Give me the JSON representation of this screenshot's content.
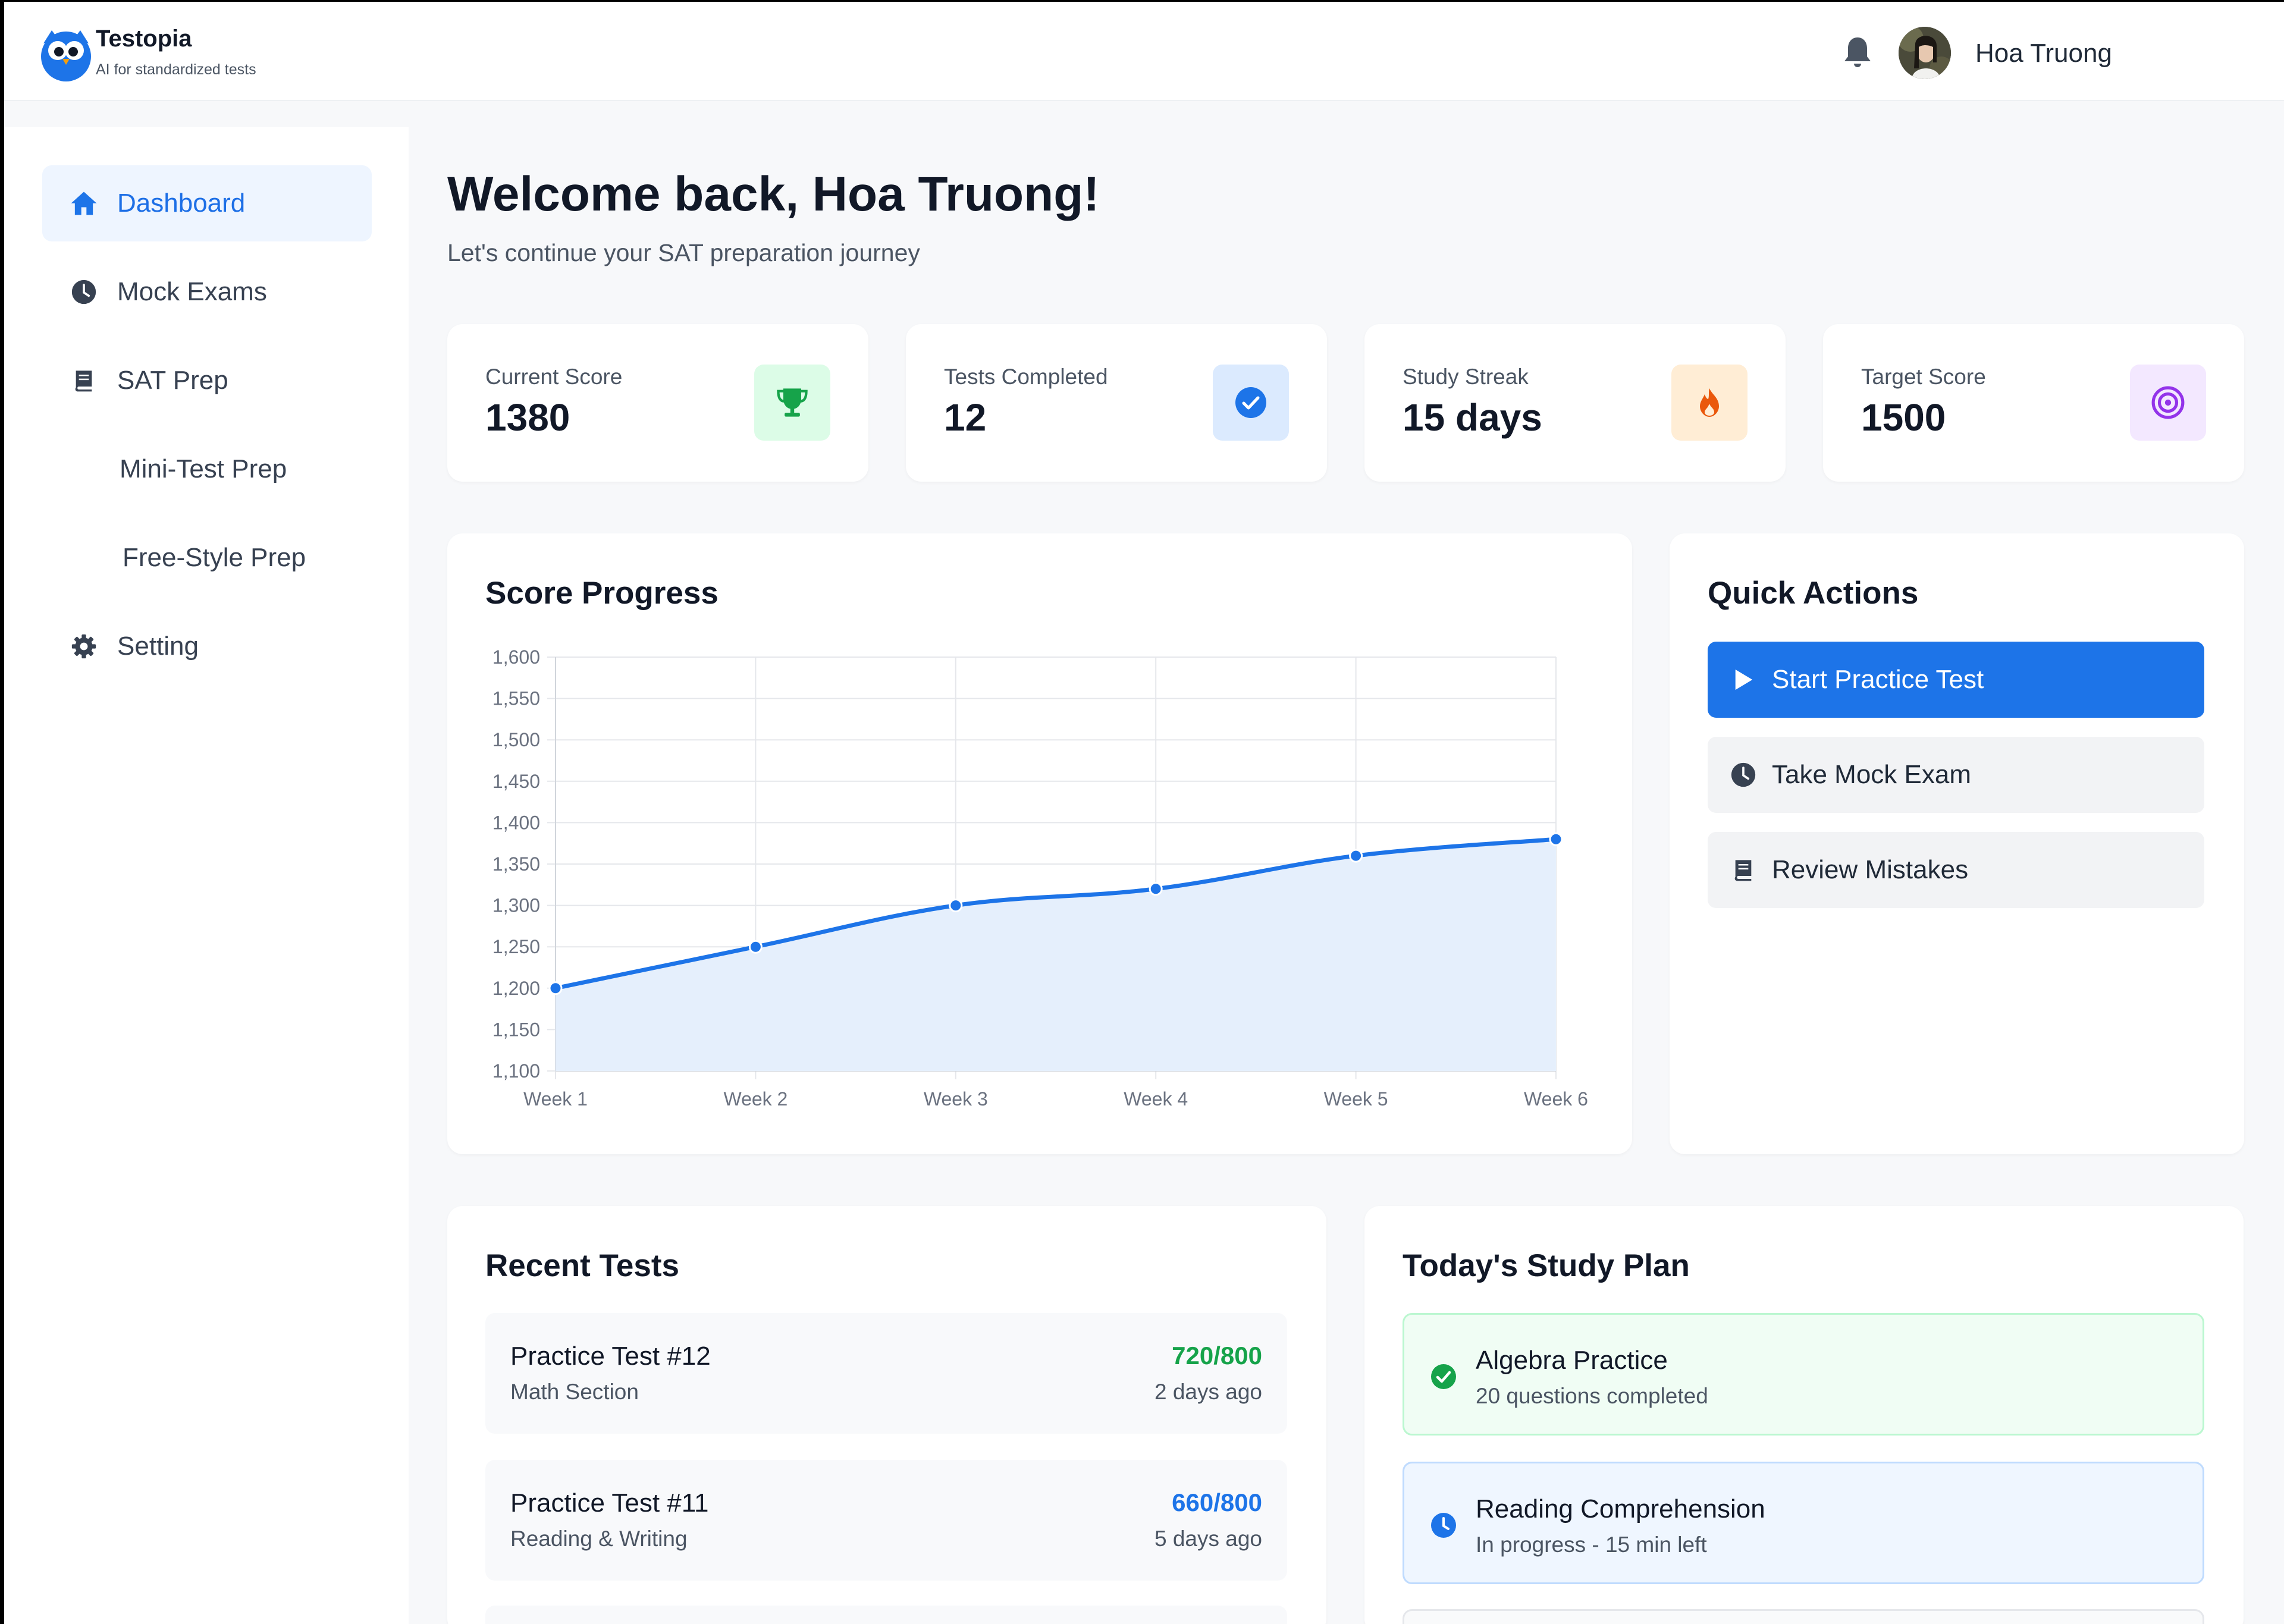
{
  "app": {
    "name": "Testopia",
    "tagline": "AI for standardized tests"
  },
  "header": {
    "user_name": "Hoa Truong",
    "bell_icon": "bell-icon",
    "avatar": "avatar"
  },
  "sidebar": {
    "items": [
      {
        "label": "Dashboard",
        "icon": "home-icon",
        "active": true
      },
      {
        "label": "Mock Exams",
        "icon": "clock-icon"
      },
      {
        "label": "SAT Prep",
        "icon": "book-icon"
      },
      {
        "label": "Mini-Test Prep"
      },
      {
        "label": "Free-Style Prep"
      },
      {
        "label": "Setting",
        "icon": "gear-icon"
      }
    ]
  },
  "welcome": {
    "title": "Welcome back, Hoa Truong!",
    "subtitle": "Let's continue your SAT preparation journey"
  },
  "stats": [
    {
      "label": "Current Score",
      "value": "1380",
      "icon": "trophy-icon",
      "color": "#16a34a",
      "bg": "#dcfce7"
    },
    {
      "label": "Tests Completed",
      "value": "12",
      "icon": "check-circle-icon",
      "color": "#1d74e8",
      "bg": "#dbeafe"
    },
    {
      "label": "Study Streak",
      "value": "15 days",
      "icon": "fire-icon",
      "color": "#ea580c",
      "bg": "#ffedd5"
    },
    {
      "label": "Target Score",
      "value": "1500",
      "icon": "target-icon",
      "color": "#9333ea",
      "bg": "#f3e8ff"
    }
  ],
  "score_progress": {
    "title": "Score Progress"
  },
  "chart_data": {
    "type": "area",
    "title": "Score Progress",
    "categories": [
      "Week 1",
      "Week 2",
      "Week 3",
      "Week 4",
      "Week 5",
      "Week 6"
    ],
    "values": [
      1200,
      1250,
      1300,
      1320,
      1360,
      1380
    ],
    "ylim": [
      1100,
      1600
    ],
    "yticks": [
      "1,600",
      "1,550",
      "1,500",
      "1,450",
      "1,400",
      "1,350",
      "1,300",
      "1,250",
      "1,200",
      "1,150",
      "1,100"
    ],
    "ytick_values": [
      1600,
      1550,
      1500,
      1450,
      1400,
      1350,
      1300,
      1250,
      1200,
      1150,
      1100
    ],
    "grid": true,
    "line_color": "#1d74e8",
    "fill_color": "#e5effc"
  },
  "quick_actions": {
    "title": "Quick Actions",
    "buttons": [
      {
        "label": "Start Practice Test",
        "icon": "play-icon"
      },
      {
        "label": "Take Mock Exam",
        "icon": "clock-icon"
      },
      {
        "label": "Review Mistakes",
        "icon": "book-icon"
      }
    ]
  },
  "recent_tests": {
    "title": "Recent Tests",
    "items": [
      {
        "name": "Practice Test #12",
        "section": "Math Section",
        "score": "720/800",
        "date": "2 days ago",
        "score_color": "#16a34a"
      },
      {
        "name": "Practice Test #11",
        "section": "Reading & Writing",
        "score": "660/800",
        "date": "5 days ago",
        "score_color": "#1d74e8"
      }
    ]
  },
  "study_plan": {
    "title": "Today's Study Plan",
    "items": [
      {
        "title": "Algebra Practice",
        "sub": "20 questions completed",
        "icon": "check-circle-icon",
        "status": "done"
      },
      {
        "title": "Reading Comprehension",
        "sub": "In progress - 15 min left",
        "icon": "clock-icon",
        "status": "in-progress"
      }
    ]
  }
}
